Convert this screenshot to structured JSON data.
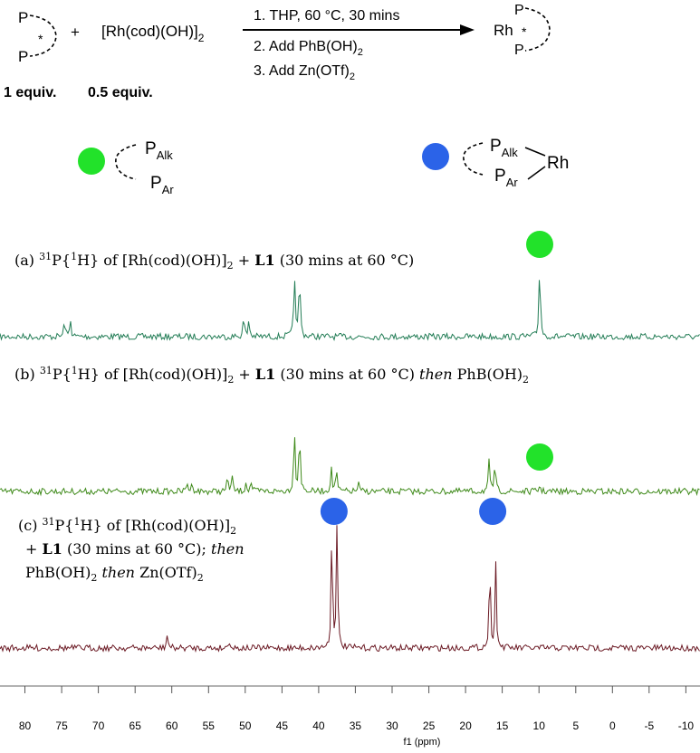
{
  "scheme": {
    "ligand_p_top": "P",
    "ligand_star": "*",
    "ligand_p_bottom": "P",
    "plus": "+",
    "rh_precursor_main": "[Rh(cod)(OH)]",
    "rh_precursor_sub": "2",
    "step1": "1. THP, 60 °C, 30 mins",
    "step2_main": "2. Add PhB(OH)",
    "step2_sub": "2",
    "step3_main": "3. Add Zn(OTf)",
    "step3_sub": "2",
    "product_rh": "Rh",
    "product_star": "*",
    "product_p_top": "P",
    "product_p_bottom": "P",
    "equiv_ligand": "1 equiv.",
    "equiv_rh": "0.5 equiv."
  },
  "legend": {
    "free": {
      "color": "#22e22a",
      "p_top": "P",
      "p_top_sub": "Alk",
      "p_bottom": "P",
      "p_bottom_sub": "Ar"
    },
    "bound": {
      "color": "#2b63e8",
      "p_top": "P",
      "p_top_sub": "Alk",
      "p_bottom": "P",
      "p_bottom_sub": "Ar",
      "metal": "Rh"
    }
  },
  "labels": {
    "a": {
      "prefix": "(a) ",
      "nucleus_sup": "31",
      "nucleus": "P{",
      "h_sup": "1",
      "rest": "H} of [Rh(cod)(OH)]",
      "sub": "2",
      "plus": " + ",
      "ligand": "L1",
      "tail": " (30 mins at 60 °C)"
    },
    "b": {
      "prefix": "(b) ",
      "nucleus_sup": "31",
      "nucleus": "P{",
      "h_sup": "1",
      "rest": "H} of [Rh(cod)(OH)]",
      "sub": "2",
      "plus": " + ",
      "ligand": "L1",
      "tail": " (30 mins at 60 °C) ",
      "then": "then",
      "reagent": " PhB(OH)",
      "reagent_sub": "2"
    },
    "c": {
      "prefix": "(c) ",
      "nucleus_sup": "31",
      "nucleus": "P{",
      "h_sup": "1",
      "rest": "H} of [Rh(cod)(OH)]",
      "sub": "2",
      "line2_plus": "+ ",
      "ligand": "L1",
      "line2_tail": " (30 mins at 60 °C); ",
      "then1": "then",
      "line3_a": "PhB(OH)",
      "line3_a_sub": "2",
      "then2": " then ",
      "line3_b": "Zn(OTf)",
      "line3_b_sub": "2"
    }
  },
  "chart_data": {
    "type": "line",
    "title": "",
    "xlabel": "f1 (ppm)",
    "ylabel": "",
    "xlim": [
      81,
      -10
    ],
    "x_reversed": true,
    "x_ticks": [
      80,
      75,
      70,
      65,
      60,
      55,
      50,
      45,
      40,
      35,
      30,
      25,
      20,
      15,
      10,
      5,
      0,
      -5,
      -10
    ],
    "x_tick_labels": [
      "80",
      "75",
      "70",
      "65",
      "60",
      "55",
      "50",
      "45",
      "40",
      "35",
      "30",
      "25",
      "20",
      "15",
      "10",
      "5",
      "0",
      "-5",
      "-10"
    ],
    "grid": false,
    "series": [
      {
        "id": "a",
        "color": "#237d56",
        "peaks": [
          {
            "ppm": 74.6,
            "height": 0.22
          },
          {
            "ppm": 73.8,
            "height": 0.22
          },
          {
            "ppm": 50.2,
            "height": 0.26
          },
          {
            "ppm": 49.5,
            "height": 0.22
          },
          {
            "ppm": 43.3,
            "height": 0.85
          },
          {
            "ppm": 42.6,
            "height": 0.85
          },
          {
            "ppm": 9.9,
            "height": 1.0
          }
        ],
        "markers": [
          {
            "ppm": 9.9,
            "kind": "free"
          }
        ]
      },
      {
        "id": "b",
        "color": "#3f8a1a",
        "peaks": [
          {
            "ppm": 57.9,
            "height": 0.14
          },
          {
            "ppm": 57.2,
            "height": 0.14
          },
          {
            "ppm": 52.4,
            "height": 0.22
          },
          {
            "ppm": 51.8,
            "height": 0.22
          },
          {
            "ppm": 49.9,
            "height": 0.14
          },
          {
            "ppm": 49.2,
            "height": 0.14
          },
          {
            "ppm": 43.3,
            "height": 0.95
          },
          {
            "ppm": 42.6,
            "height": 0.95
          },
          {
            "ppm": 38.3,
            "height": 0.35
          },
          {
            "ppm": 37.6,
            "height": 0.35
          },
          {
            "ppm": 34.6,
            "height": 0.12
          },
          {
            "ppm": 16.8,
            "height": 0.44
          },
          {
            "ppm": 16.0,
            "height": 0.44
          },
          {
            "ppm": 9.9,
            "height": 0.1
          }
        ],
        "markers": [
          {
            "ppm": 9.9,
            "kind": "free"
          }
        ]
      },
      {
        "id": "c",
        "color": "#6b1a24",
        "peaks": [
          {
            "ppm": 60.6,
            "height": 0.12
          },
          {
            "ppm": 52.2,
            "height": 0.08
          },
          {
            "ppm": 38.2,
            "height": 1.0
          },
          {
            "ppm": 37.5,
            "height": 1.0
          },
          {
            "ppm": 16.7,
            "height": 0.7
          },
          {
            "ppm": 15.9,
            "height": 0.7
          }
        ],
        "markers": [
          {
            "ppm": 37.9,
            "kind": "bound"
          },
          {
            "ppm": 16.3,
            "kind": "bound"
          }
        ]
      }
    ]
  }
}
